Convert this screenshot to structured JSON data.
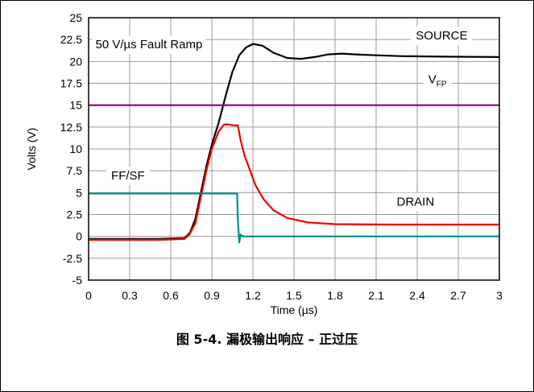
{
  "caption": "图 5-4. 漏极输出响应 – 正过压",
  "chart_data": {
    "type": "line",
    "xlabel": "Time (µs)",
    "ylabel": "Volts (V)",
    "xlim": [
      0,
      3
    ],
    "ylim": [
      -5,
      25
    ],
    "x_ticks": [
      0,
      0.3,
      0.6,
      0.9,
      1.2,
      1.5,
      1.8,
      2.1,
      2.4,
      2.7,
      3
    ],
    "y_ticks": [
      -5,
      -2.5,
      0,
      2.5,
      5,
      7.5,
      10,
      12.5,
      15,
      17.5,
      20,
      22.5,
      25
    ],
    "x_tick_labels": [
      "0",
      "0.3",
      "0.6",
      "0.9",
      "1.2",
      "1.5",
      "1.8",
      "2.1",
      "2.4",
      "2.7",
      "3"
    ],
    "y_tick_labels": [
      "-5",
      "-2.5",
      "0",
      "2.5",
      "5",
      "7.5",
      "10",
      "12.5",
      "15",
      "17.5",
      "20",
      "22.5",
      "25"
    ],
    "grid": true,
    "annotations": {
      "ramp": "50 V/µs Fault Ramp",
      "source": "SOURCE",
      "vfp_main": "V",
      "vfp_sub": "FP",
      "ffsf": "FF/SF",
      "drain": "DRAIN"
    },
    "series": [
      {
        "name": "SOURCE",
        "color": "#000000",
        "points": [
          [
            0,
            -0.3
          ],
          [
            0.5,
            -0.3
          ],
          [
            0.7,
            -0.2
          ],
          [
            0.74,
            0.4
          ],
          [
            0.78,
            2.0
          ],
          [
            0.82,
            5.0
          ],
          [
            0.86,
            8.0
          ],
          [
            0.9,
            10.5
          ],
          [
            0.95,
            13.0
          ],
          [
            1.0,
            16.0
          ],
          [
            1.05,
            18.8
          ],
          [
            1.1,
            20.7
          ],
          [
            1.15,
            21.6
          ],
          [
            1.2,
            22.0
          ],
          [
            1.27,
            21.8
          ],
          [
            1.35,
            21.0
          ],
          [
            1.45,
            20.4
          ],
          [
            1.55,
            20.3
          ],
          [
            1.65,
            20.5
          ],
          [
            1.75,
            20.8
          ],
          [
            1.85,
            20.9
          ],
          [
            1.95,
            20.8
          ],
          [
            2.1,
            20.7
          ],
          [
            2.3,
            20.6
          ],
          [
            2.6,
            20.55
          ],
          [
            3.0,
            20.5
          ]
        ]
      },
      {
        "name": "VFP",
        "color": "#800080",
        "points": [
          [
            0,
            15
          ],
          [
            3,
            15
          ]
        ]
      },
      {
        "name": "DRAIN",
        "color": "#ee0000",
        "points": [
          [
            0,
            -0.4
          ],
          [
            0.5,
            -0.4
          ],
          [
            0.7,
            -0.3
          ],
          [
            0.74,
            0.3
          ],
          [
            0.78,
            1.5
          ],
          [
            0.82,
            4.5
          ],
          [
            0.86,
            7.5
          ],
          [
            0.9,
            10.0
          ],
          [
            0.95,
            12.0
          ],
          [
            0.99,
            12.8
          ],
          [
            1.02,
            12.8
          ],
          [
            1.05,
            12.7
          ],
          [
            1.09,
            12.7
          ],
          [
            1.11,
            11.0
          ],
          [
            1.14,
            9.2
          ],
          [
            1.18,
            7.5
          ],
          [
            1.22,
            5.8
          ],
          [
            1.28,
            4.2
          ],
          [
            1.35,
            3.0
          ],
          [
            1.45,
            2.1
          ],
          [
            1.6,
            1.6
          ],
          [
            1.8,
            1.4
          ],
          [
            2.2,
            1.35
          ],
          [
            3.0,
            1.35
          ]
        ]
      },
      {
        "name": "FF/SF",
        "color": "#008b8b",
        "points": [
          [
            0,
            4.9
          ],
          [
            1.085,
            4.9
          ],
          [
            1.09,
            2.0
          ],
          [
            1.1,
            -0.7
          ],
          [
            1.11,
            0.2
          ],
          [
            1.13,
            0.0
          ],
          [
            1.2,
            0.0
          ],
          [
            3.0,
            0.0
          ]
        ]
      }
    ]
  }
}
